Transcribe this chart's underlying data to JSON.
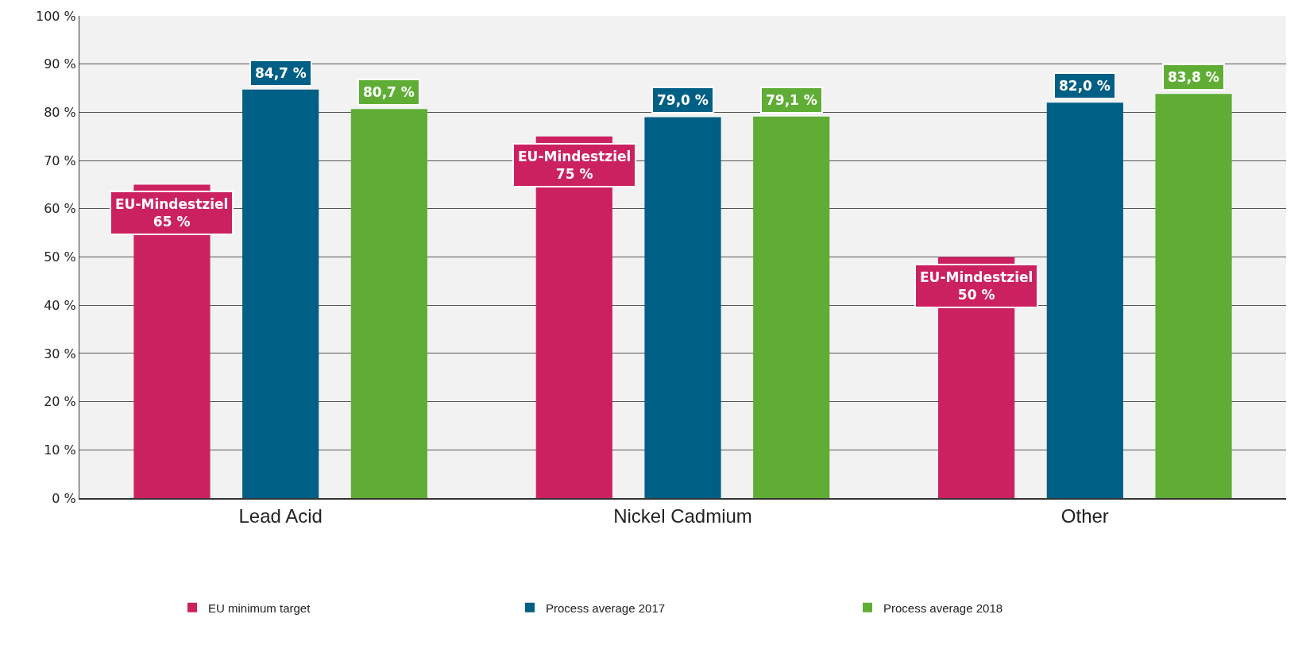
{
  "chart_data": {
    "type": "bar",
    "categories": [
      "Lead Acid",
      "Nickel Cadmium",
      "Other"
    ],
    "series": [
      {
        "name": "EU minimum target",
        "color": "#cc2160",
        "values": [
          65,
          75,
          50
        ],
        "value_labels": [
          "EU-Mindestziel\n65 %",
          "EU-Mindestziel\n75 %",
          "EU-Mindestziel\n50 %"
        ]
      },
      {
        "name": "Process average 2017",
        "color": "#005f85",
        "values": [
          84.7,
          79.0,
          82.0
        ],
        "value_labels": [
          "84,7 %",
          "79,0 %",
          "82,0 %"
        ]
      },
      {
        "name": "Process average 2018",
        "color": "#5fad35",
        "values": [
          80.7,
          79.1,
          83.8
        ],
        "value_labels": [
          "80,7 %",
          "79,1 %",
          "83,8 %"
        ]
      }
    ],
    "ylim": [
      0,
      100
    ],
    "yticks": [
      {
        "value": 0,
        "label": "0 %"
      },
      {
        "value": 10,
        "label": "10 %"
      },
      {
        "value": 20,
        "label": "20 %"
      },
      {
        "value": 30,
        "label": "30 %"
      },
      {
        "value": 40,
        "label": "40 %"
      },
      {
        "value": 50,
        "label": "50 %"
      },
      {
        "value": 60,
        "label": "60 %"
      },
      {
        "value": 70,
        "label": "70 %"
      },
      {
        "value": 80,
        "label": "80 %"
      },
      {
        "value": 90,
        "label": "90 %"
      },
      {
        "value": 100,
        "label": "100 %"
      }
    ],
    "grid": "y",
    "legend": "bottom"
  }
}
